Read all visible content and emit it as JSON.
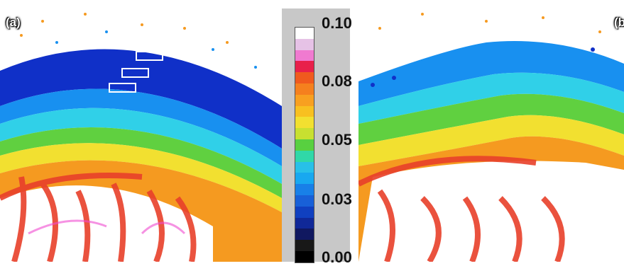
{
  "panels": [
    {
      "id": "a",
      "label": "(a)"
    },
    {
      "id": "b",
      "label": "(b"
    }
  ],
  "colorbar": {
    "ticks": [
      "0.10",
      "0.08",
      "0.05",
      "0.03",
      "0.00"
    ],
    "colors": [
      "#ffffff",
      "#e6c2e6",
      "#f07ad0",
      "#e8204a",
      "#f05a1e",
      "#f5801e",
      "#f8a020",
      "#f8c020",
      "#f2e030",
      "#c8e030",
      "#58d040",
      "#30d8a8",
      "#28c0e8",
      "#18a8f0",
      "#1880e8",
      "#1860d8",
      "#1040c0",
      "#102898",
      "#101860",
      "#181818",
      "#000000"
    ]
  },
  "figure_colors": {
    "deep_blue": "#1030c8",
    "blue": "#1890f0",
    "cyan": "#30d0e8",
    "green": "#60d040",
    "yellow": "#f2e030",
    "orange": "#f59a20",
    "red": "#e8402a",
    "magenta": "#f04ad0"
  }
}
